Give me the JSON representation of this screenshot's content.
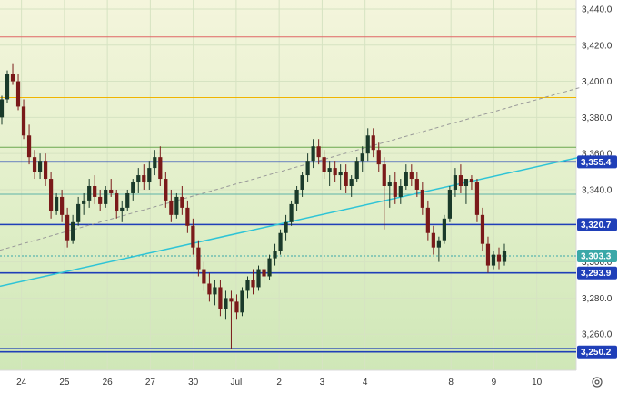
{
  "chart_data": {
    "type": "candlestick",
    "title": "",
    "xlabel": "",
    "ylabel": "",
    "ylim": [
      3240,
      3445
    ],
    "grid": true,
    "y_ticks": [
      "3,440.0",
      "3,420.0",
      "3,400.0",
      "3,380.0",
      "3,360.0",
      "3,340.0",
      "3,320.0",
      "3,300.0",
      "3,280.0",
      "3,260.0"
    ],
    "x_ticks": [
      "24",
      "25",
      "26",
      "27",
      "30",
      "Jul",
      "2",
      "3",
      "4",
      "8",
      "9",
      "10"
    ],
    "x_tick_index": [
      6,
      18,
      30,
      42,
      54,
      66,
      78,
      90,
      102,
      126,
      138,
      150
    ],
    "n_slots": 162,
    "horizontal_levels": [
      {
        "value": 3424.5,
        "color": "#e06666",
        "badge": ""
      },
      {
        "value": 3391.0,
        "color": "#f0b400",
        "badge": ""
      },
      {
        "value": 3363.5,
        "color": "#6aa84f",
        "badge": ""
      },
      {
        "value": 3355.4,
        "color": "#1f3fb8",
        "badge": "3,355.4"
      },
      {
        "value": 3337.5,
        "color": "#5fb3a8",
        "badge": ""
      },
      {
        "value": 3320.7,
        "color": "#1f3fb8",
        "badge": "3,320.7"
      },
      {
        "value": 3303.3,
        "color": "#3aa8a8",
        "badge": "3,303.3"
      },
      {
        "value": 3293.9,
        "color": "#1f3fb8",
        "badge": "3,293.9"
      },
      {
        "value": 3252.0,
        "color": "#1f3fb8",
        "badge": ""
      },
      {
        "value": 3250.2,
        "color": "#1f3fb8",
        "badge": "3,250.2"
      }
    ],
    "trend_lines": [
      {
        "x": [
          0,
          162
        ],
        "y": [
          3286.5,
          3358.0
        ],
        "color": "#2ec4d6",
        "dashed": false
      },
      {
        "x": [
          0,
          162
        ],
        "y": [
          3306.5,
          3396.5
        ],
        "color": "#999999",
        "dashed": true
      }
    ],
    "ohlc": [
      [
        3380,
        3392,
        3376,
        3390
      ],
      [
        3390,
        3406,
        3388,
        3404
      ],
      [
        3404,
        3410,
        3398,
        3400
      ],
      [
        3400,
        3404,
        3384,
        3386
      ],
      [
        3386,
        3390,
        3368,
        3370
      ],
      [
        3370,
        3376,
        3354,
        3358
      ],
      [
        3358,
        3362,
        3346,
        3350
      ],
      [
        3350,
        3360,
        3346,
        3356
      ],
      [
        3356,
        3360,
        3342,
        3346
      ],
      [
        3346,
        3350,
        3324,
        3328
      ],
      [
        3328,
        3338,
        3326,
        3336
      ],
      [
        3336,
        3340,
        3322,
        3326
      ],
      [
        3326,
        3330,
        3308,
        3312
      ],
      [
        3312,
        3326,
        3310,
        3322
      ],
      [
        3322,
        3336,
        3320,
        3332
      ],
      [
        3332,
        3338,
        3326,
        3334
      ],
      [
        3334,
        3346,
        3330,
        3342
      ],
      [
        3342,
        3348,
        3332,
        3336
      ],
      [
        3336,
        3340,
        3328,
        3332
      ],
      [
        3332,
        3342,
        3330,
        3340
      ],
      [
        3340,
        3346,
        3336,
        3338
      ],
      [
        3338,
        3340,
        3324,
        3328
      ],
      [
        3328,
        3334,
        3322,
        3330
      ],
      [
        3330,
        3340,
        3328,
        3338
      ],
      [
        3338,
        3346,
        3334,
        3344
      ],
      [
        3344,
        3352,
        3338,
        3348
      ],
      [
        3348,
        3354,
        3340,
        3344
      ],
      [
        3344,
        3356,
        3340,
        3352
      ],
      [
        3352,
        3362,
        3348,
        3358
      ],
      [
        3358,
        3364,
        3342,
        3346
      ],
      [
        3346,
        3350,
        3330,
        3334
      ],
      [
        3334,
        3340,
        3322,
        3326
      ],
      [
        3326,
        3338,
        3324,
        3336
      ],
      [
        3336,
        3342,
        3326,
        3330
      ],
      [
        3330,
        3334,
        3316,
        3320
      ],
      [
        3320,
        3324,
        3304,
        3308
      ],
      [
        3308,
        3312,
        3292,
        3296
      ],
      [
        3296,
        3300,
        3284,
        3288
      ],
      [
        3288,
        3294,
        3278,
        3282
      ],
      [
        3282,
        3290,
        3276,
        3286
      ],
      [
        3286,
        3290,
        3270,
        3274
      ],
      [
        3274,
        3284,
        3268,
        3280
      ],
      [
        3280,
        3284,
        3252,
        3278
      ],
      [
        3278,
        3282,
        3268,
        3272
      ],
      [
        3272,
        3286,
        3270,
        3284
      ],
      [
        3284,
        3292,
        3280,
        3290
      ],
      [
        3290,
        3296,
        3282,
        3286
      ],
      [
        3286,
        3298,
        3284,
        3296
      ],
      [
        3296,
        3300,
        3288,
        3292
      ],
      [
        3292,
        3304,
        3290,
        3302
      ],
      [
        3302,
        3310,
        3298,
        3306
      ],
      [
        3306,
        3318,
        3304,
        3316
      ],
      [
        3316,
        3326,
        3312,
        3322
      ],
      [
        3322,
        3334,
        3320,
        3332
      ],
      [
        3332,
        3342,
        3328,
        3340
      ],
      [
        3340,
        3350,
        3336,
        3348
      ],
      [
        3348,
        3360,
        3344,
        3356
      ],
      [
        3356,
        3368,
        3352,
        3364
      ],
      [
        3364,
        3368,
        3354,
        3358
      ],
      [
        3358,
        3362,
        3346,
        3350
      ],
      [
        3350,
        3356,
        3342,
        3352
      ],
      [
        3352,
        3356,
        3344,
        3348
      ],
      [
        3348,
        3354,
        3340,
        3350
      ],
      [
        3350,
        3354,
        3338,
        3342
      ],
      [
        3342,
        3348,
        3336,
        3346
      ],
      [
        3346,
        3358,
        3344,
        3356
      ],
      [
        3356,
        3364,
        3350,
        3360
      ],
      [
        3360,
        3374,
        3356,
        3370
      ],
      [
        3370,
        3374,
        3358,
        3362
      ],
      [
        3362,
        3366,
        3350,
        3354
      ],
      [
        3354,
        3358,
        3318,
        3342
      ],
      [
        3342,
        3348,
        3330,
        3344
      ],
      [
        3344,
        3350,
        3332,
        3336
      ],
      [
        3336,
        3346,
        3332,
        3342
      ],
      [
        3342,
        3354,
        3340,
        3350
      ],
      [
        3350,
        3354,
        3342,
        3346
      ],
      [
        3346,
        3350,
        3336,
        3340
      ],
      [
        3340,
        3344,
        3326,
        3330
      ],
      [
        3330,
        3334,
        3312,
        3316
      ],
      [
        3316,
        3320,
        3304,
        3308
      ],
      [
        3308,
        3314,
        3300,
        3312
      ],
      [
        3312,
        3326,
        3310,
        3324
      ],
      [
        3324,
        3342,
        3322,
        3340
      ],
      [
        3340,
        3352,
        3336,
        3348
      ],
      [
        3348,
        3354,
        3338,
        3342
      ],
      [
        3342,
        3346,
        3332,
        3346
      ],
      [
        3346,
        3348,
        3340,
        3344
      ],
      [
        3344,
        3346,
        3322,
        3326
      ],
      [
        3326,
        3330,
        3306,
        3310
      ],
      [
        3310,
        3314,
        3294,
        3298
      ],
      [
        3298,
        3306,
        3296,
        3304
      ],
      [
        3304,
        3308,
        3296,
        3300
      ],
      [
        3300,
        3310,
        3298,
        3306
      ]
    ],
    "ohlc_slot_map": "linear",
    "price_label_levels": [
      "3,355.4",
      "3,320.7",
      "3,303.3",
      "3,293.9",
      "3,250.2"
    ]
  },
  "ui": {
    "settings_icon": "gear-icon"
  }
}
